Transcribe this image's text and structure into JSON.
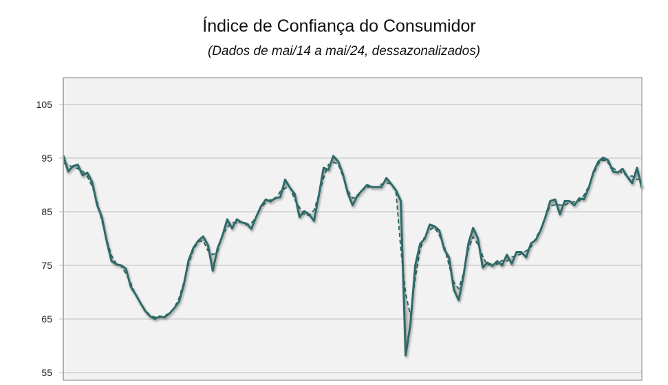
{
  "chart_data": {
    "type": "line",
    "title": "Índice de Confiança do Consumidor",
    "subtitle": "(Dados de mai/14 a mai/24, dessazonalizados)",
    "xlabel": "",
    "ylabel": "",
    "x_start": "mai/14",
    "x_end": "mai/24",
    "frequency": "monthly",
    "ylim": [
      55,
      110
    ],
    "yticks": [
      55,
      65,
      75,
      85,
      95,
      105
    ],
    "grid": true,
    "legend": "none",
    "colors": {
      "line": "#2e6b68",
      "plot_bg": "#f2f2f2",
      "band": "#c9c9c9",
      "grid": "#d0d0d0"
    },
    "series": [
      {
        "style": "solid",
        "values": [
          95.5,
          92.5,
          93.5,
          93.8,
          91.8,
          92.3,
          90.5,
          86.3,
          84,
          79.5,
          75.8,
          75.2,
          75,
          74.4,
          71,
          69.6,
          68,
          66.5,
          65.5,
          65,
          65.5,
          65.3,
          66,
          67,
          68.2,
          71.4,
          76,
          78.3,
          79.6,
          80.4,
          78.8,
          74,
          78.2,
          80.5,
          83.6,
          81.9,
          83.6,
          83,
          82.8,
          81.8,
          84,
          86,
          87.3,
          86.9,
          87.6,
          87.7,
          91,
          89.5,
          88.3,
          84,
          85.1,
          84.5,
          83.3,
          88,
          93.2,
          92.8,
          95.4,
          94.4,
          92,
          88.5,
          86.2,
          88,
          89,
          90,
          89.6,
          89.6,
          89.6,
          91.3,
          90.2,
          89,
          87,
          58.2,
          64,
          75,
          79,
          80,
          82.6,
          82.3,
          81.5,
          78,
          76.5,
          70.5,
          68.5,
          73,
          79,
          82,
          80,
          74.6,
          75.5,
          74.9,
          75.8,
          75,
          77,
          75.3,
          77.5,
          77.5,
          76.5,
          79.1,
          79.7,
          81.5,
          84,
          87,
          87.3,
          84.5,
          87,
          87,
          86.2,
          87.5,
          87.3,
          89.5,
          92.5,
          94.4,
          95.1,
          94.6,
          92.5,
          92.3,
          93,
          91.5,
          90.3,
          93.2,
          89.4
        ]
      },
      {
        "style": "dashed",
        "note_visible": false
      }
    ]
  }
}
